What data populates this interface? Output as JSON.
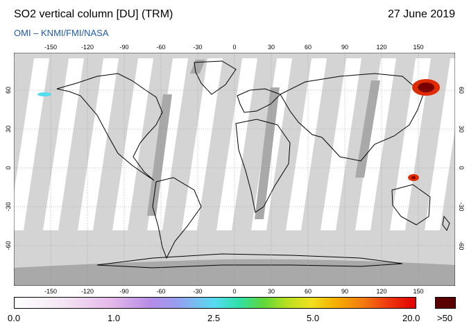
{
  "header": {
    "title": "SO2 vertical column [DU] (TRM)",
    "date": "27 June 2019",
    "credit": "OMI  –  KNMI/FMI/NASA"
  },
  "map": {
    "lon_ticks_top": [
      "-150",
      "-120",
      "-90",
      "-60",
      "-30",
      "0",
      "30",
      "60",
      "90",
      "120",
      "150"
    ],
    "lon_ticks_bottom": [
      "-150",
      "-120",
      "-90",
      "-60",
      "-30",
      "0",
      "30",
      "60",
      "90",
      "120",
      "150"
    ],
    "lat_ticks_left": [
      "60",
      "30",
      "0",
      "-30",
      "-60"
    ],
    "lat_ticks_right": [
      "60",
      "30",
      "0",
      "-30",
      "-60"
    ],
    "colors": {
      "no_data": "#d4d4d4",
      "swath_gap": "#a9a9a9",
      "background": "#ffffff",
      "hotspot_high": "#7a0000",
      "hotspot_mid": "#e02a00"
    }
  },
  "colorbar": {
    "labels": [
      "0.0",
      "1.0",
      "2.5",
      "5.0",
      "20.0"
    ],
    "saturation_label": ">50",
    "saturation_color": "#5a0000"
  }
}
